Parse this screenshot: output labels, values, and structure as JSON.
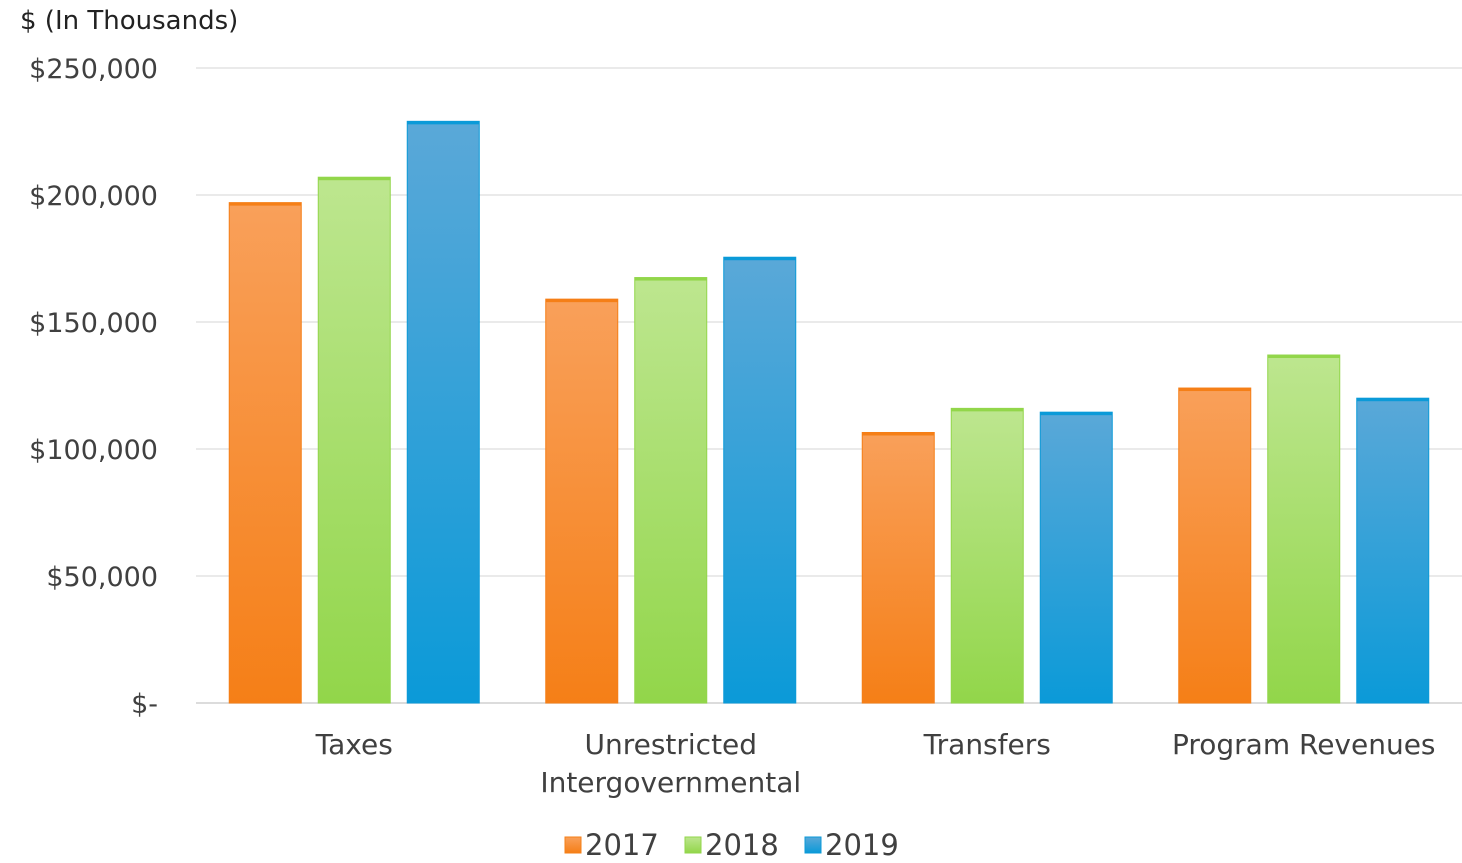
{
  "chart_data": {
    "type": "bar",
    "unit_label": "$ (In Thousands)",
    "categories": [
      [
        "Taxes"
      ],
      [
        "Unrestricted",
        "Intergovernmental"
      ],
      [
        "Transfers"
      ],
      [
        "Program Revenues"
      ]
    ],
    "series": [
      {
        "name": "2017",
        "color": "#f57f17",
        "color_light": "#f9a05a",
        "values": [
          197000,
          159000,
          106500,
          124000
        ]
      },
      {
        "name": "2018",
        "color": "#92d64a",
        "color_light": "#bde68f",
        "values": [
          207000,
          167500,
          116000,
          137000
        ]
      },
      {
        "name": "2019",
        "color": "#0b9ad8",
        "color_light": "#5aa8d8",
        "values": [
          229000,
          175500,
          114500,
          120000
        ]
      }
    ],
    "y_ticks": [
      {
        "value": 0,
        "label": "$-"
      },
      {
        "value": 50000,
        "label": "$50,000"
      },
      {
        "value": 100000,
        "label": "$100,000"
      },
      {
        "value": 150000,
        "label": "$150,000"
      },
      {
        "value": 200000,
        "label": "$200,000"
      },
      {
        "value": 250000,
        "label": "$250,000"
      }
    ],
    "ylim": [
      0,
      250000
    ],
    "grid": true,
    "legend_position": "bottom"
  }
}
